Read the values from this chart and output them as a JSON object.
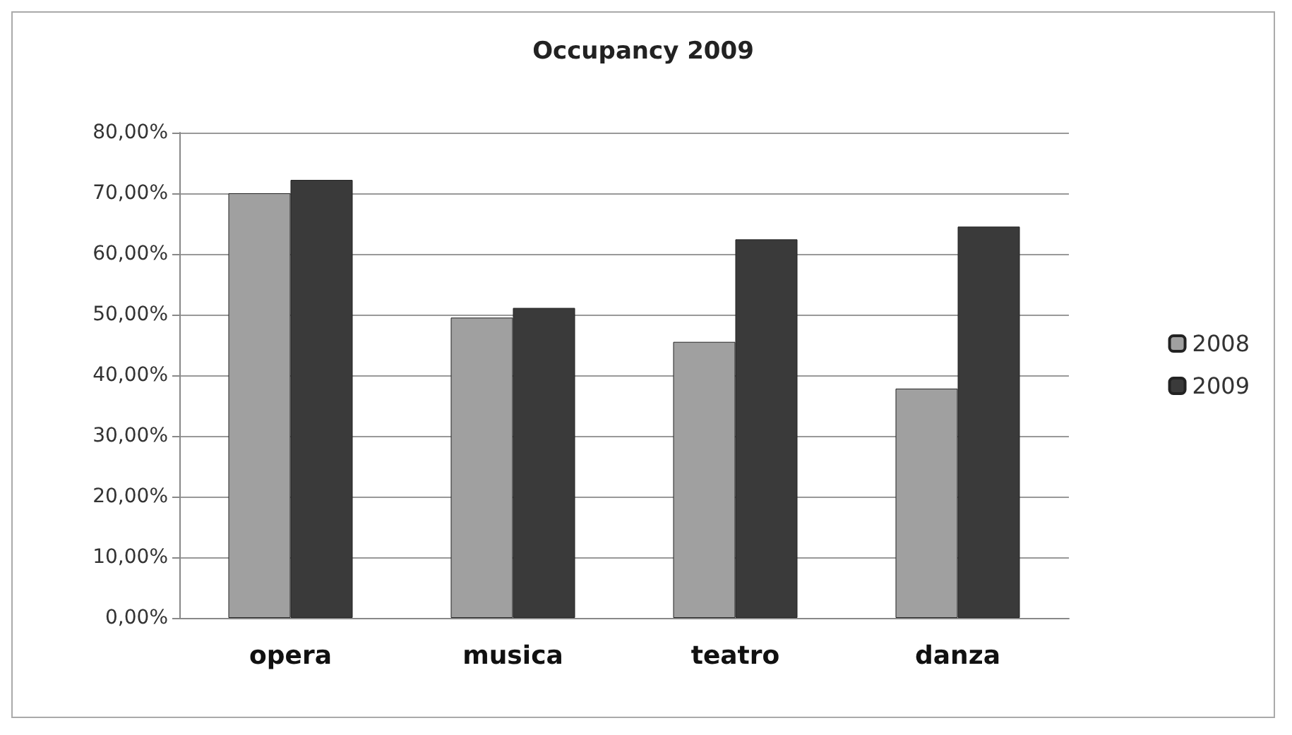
{
  "chart_data": {
    "type": "bar",
    "title": "Occupancy 2009",
    "categories": [
      "opera",
      "musica",
      "teatro",
      "danza"
    ],
    "series": [
      {
        "name": "2008",
        "color": "#a0a0a0",
        "values": [
          70,
          49.5,
          45.5,
          37.8
        ]
      },
      {
        "name": "2009",
        "color": "#3a3a3a",
        "values": [
          72.2,
          51.1,
          62.4,
          64.5
        ]
      }
    ],
    "ylim": [
      0,
      80
    ],
    "yticks": [
      {
        "value": 0,
        "label": "0,00%"
      },
      {
        "value": 10,
        "label": "10,00%"
      },
      {
        "value": 20,
        "label": "20,00%"
      },
      {
        "value": 30,
        "label": "30,00%"
      },
      {
        "value": 40,
        "label": "40,00%"
      },
      {
        "value": 50,
        "label": "50,00%"
      },
      {
        "value": 60,
        "label": "60,00%"
      },
      {
        "value": 70,
        "label": "70,00%"
      },
      {
        "value": 80,
        "label": "80,00%"
      }
    ],
    "grid": "y",
    "legend": "right"
  }
}
